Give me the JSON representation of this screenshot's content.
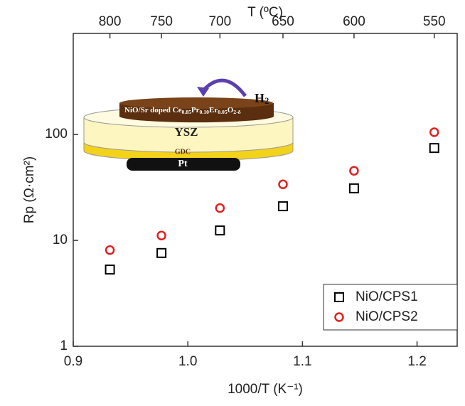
{
  "chart_data": {
    "type": "scatter",
    "x_label": "1000/T (K⁻¹)",
    "y_label": "Rp (Ω·cm²)",
    "x2_label": "T (ºC)",
    "xlim": [
      0.9,
      1.235
    ],
    "ylim": [
      1,
      900
    ],
    "log_y": true,
    "xticks": [
      0.9,
      {
        "value": 1,
        "label": "1.0"
      },
      1.1,
      1.2
    ],
    "yticks": [
      1,
      10,
      100
    ],
    "x2ticks": [
      {
        "value": 0.932,
        "label": "800"
      },
      {
        "value": 0.977,
        "label": "750"
      },
      {
        "value": 1.028,
        "label": "700"
      },
      {
        "value": 1.083,
        "label": "650"
      },
      {
        "value": 1.145,
        "label": "600"
      },
      {
        "value": 1.215,
        "label": "550"
      }
    ],
    "legend_position": "lower right",
    "series": [
      {
        "name": "NiO/CPS1",
        "color": "#000000",
        "marker": "square",
        "x": [
          0.932,
          0.977,
          1.028,
          1.083,
          1.145,
          1.215
        ],
        "values": [
          5.3,
          7.6,
          12.4,
          21,
          31,
          74.5
        ]
      },
      {
        "name": "NiO/CPS2",
        "color": "#e02020",
        "marker": "circle",
        "x": [
          0.932,
          0.977,
          1.028,
          1.083,
          1.145,
          1.215
        ],
        "values": [
          8.1,
          11.1,
          20.2,
          33.8,
          45.4,
          105
        ]
      }
    ],
    "inset": {
      "cathode": [
        "NiO/Sr doped Ce",
        "0.85",
        "Pr",
        "0.10",
        "Er",
        "0.05",
        "O",
        "2-δ"
      ],
      "gas": [
        "H",
        "2"
      ],
      "electrolyte": "YSZ",
      "interlayer": "GDC",
      "anode": "Pt"
    }
  }
}
